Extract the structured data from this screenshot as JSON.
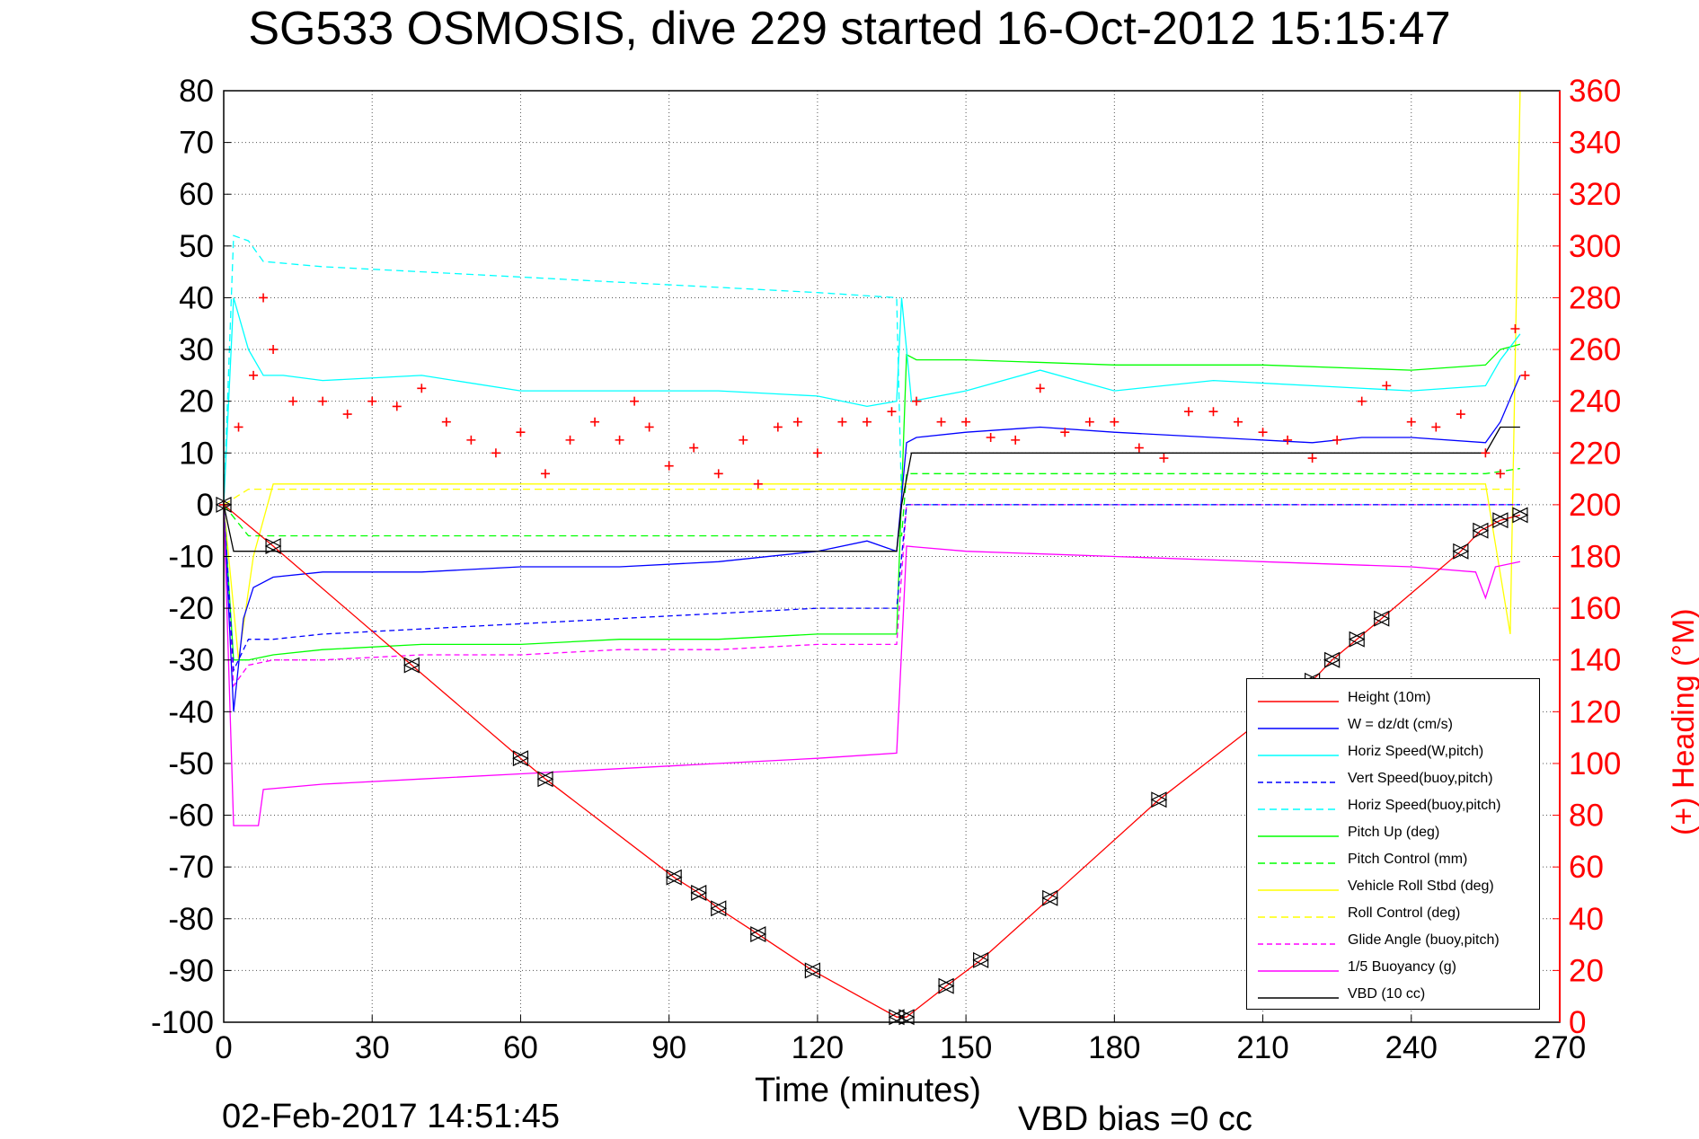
{
  "figure": {
    "title": "SG533 OSMOSIS, dive 229 started 16-Oct-2012 15:15:47",
    "timestamp": "02-Feb-2017 14:51:45",
    "vbd_bias": "VBD bias =0 cc"
  },
  "chart_data": {
    "type": "line",
    "title": "SG533 OSMOSIS, dive 229 started 16-Oct-2012 15:15:47",
    "xlabel": "Time (minutes)",
    "ylabel": "",
    "y2label": "(+) Heading (°M)",
    "xlim": [
      0,
      270
    ],
    "ylim": [
      -100,
      80
    ],
    "y2lim": [
      0,
      360
    ],
    "xticks": [
      0,
      30,
      60,
      90,
      120,
      150,
      180,
      210,
      240,
      270
    ],
    "yticks": [
      80,
      70,
      60,
      50,
      40,
      30,
      20,
      10,
      0,
      -10,
      -20,
      -30,
      -40,
      -50,
      -60,
      -70,
      -80,
      -90,
      -100
    ],
    "y2ticks": [
      360,
      340,
      320,
      300,
      280,
      260,
      240,
      220,
      200,
      180,
      160,
      140,
      120,
      100,
      80,
      60,
      40,
      20,
      0
    ],
    "grid": true,
    "legend_position": "bottom-right",
    "colors": {
      "height": "#ff0000",
      "w": "#0000ff",
      "horiz_w": "#00ffff",
      "vert_buoy": "#0000ff",
      "horiz_buoy": "#00ffff",
      "pitch": "#00ff00",
      "pitch_ctl": "#00ff00",
      "roll": "#ffff00",
      "roll_ctl": "#ffff00",
      "glide": "#ff00ff",
      "buoyancy": "#ff00ff",
      "vbd": "#000000",
      "heading": "#ff0000"
    },
    "series": [
      {
        "name": "Height (10m)",
        "key": "height",
        "dash": "solid",
        "x": [
          0,
          10,
          38,
          60,
          65,
          91,
          96,
          100,
          108,
          119,
          136,
          138,
          146,
          153,
          167,
          189,
          220,
          224,
          229,
          234,
          250,
          254,
          258,
          262
        ],
        "y": [
          0,
          -8,
          -31,
          -49,
          -53,
          -72,
          -75,
          -78,
          -83,
          -90,
          -99,
          -99,
          -93,
          -88,
          -76,
          -57,
          -34,
          -30,
          -26,
          -22,
          -9,
          -5,
          -3,
          -2
        ]
      },
      {
        "name": "W = dz/dt (cm/s)",
        "key": "w",
        "dash": "solid",
        "x": [
          0,
          2,
          4,
          6,
          10,
          20,
          40,
          60,
          80,
          100,
          120,
          130,
          136,
          138,
          140,
          150,
          165,
          180,
          200,
          220,
          230,
          240,
          255,
          258,
          262
        ],
        "y": [
          0,
          -40,
          -22,
          -16,
          -14,
          -13,
          -13,
          -12,
          -12,
          -11,
          -9,
          -7,
          -9,
          12,
          13,
          14,
          15,
          14,
          13,
          12,
          13,
          13,
          12,
          16,
          25
        ]
      },
      {
        "name": "Horiz Speed(W,pitch)",
        "key": "horiz_w",
        "dash": "solid",
        "x": [
          0,
          2,
          5,
          8,
          12,
          20,
          40,
          60,
          80,
          100,
          120,
          130,
          136,
          137,
          139,
          150,
          165,
          180,
          200,
          220,
          240,
          255,
          258,
          262
        ],
        "y": [
          0,
          40,
          30,
          25,
          25,
          24,
          25,
          22,
          22,
          22,
          21,
          19,
          20,
          40,
          20,
          22,
          26,
          22,
          24,
          23,
          22,
          23,
          28,
          33
        ]
      },
      {
        "name": "Vert Speed(buoy,pitch)",
        "key": "vert_buoy",
        "dash": "6,4",
        "x": [
          0,
          2,
          5,
          10,
          20,
          40,
          60,
          80,
          100,
          120,
          136,
          138,
          150,
          180,
          210,
          240,
          262
        ],
        "y": [
          0,
          -32,
          -26,
          -26,
          -25,
          -24,
          -23,
          -22,
          -21,
          -20,
          -20,
          0,
          0,
          0,
          0,
          0,
          0
        ]
      },
      {
        "name": "Horiz Speed(buoy,pitch)",
        "key": "horiz_buoy",
        "dash": "8,5",
        "x": [
          0,
          2,
          5,
          8,
          20,
          40,
          60,
          80,
          100,
          120,
          136,
          137,
          150,
          180,
          210,
          240,
          262
        ],
        "y": [
          0,
          52,
          51,
          47,
          46,
          45,
          44,
          43,
          42,
          41,
          40,
          0,
          0,
          0,
          0,
          0,
          0
        ]
      },
      {
        "name": "Pitch Up (deg)",
        "key": "pitch",
        "dash": "solid",
        "x": [
          0,
          2,
          5,
          10,
          20,
          40,
          60,
          80,
          100,
          120,
          136,
          138,
          140,
          150,
          180,
          210,
          240,
          255,
          258,
          262
        ],
        "y": [
          0,
          -30,
          -30,
          -29,
          -28,
          -27,
          -27,
          -26,
          -26,
          -25,
          -25,
          29,
          28,
          28,
          27,
          27,
          26,
          27,
          30,
          31
        ]
      },
      {
        "name": "Pitch Control (mm)",
        "key": "pitch_ctl",
        "dash": "8,5",
        "x": [
          0,
          5,
          20,
          40,
          60,
          80,
          100,
          120,
          137,
          138,
          150,
          180,
          210,
          240,
          255,
          262
        ],
        "y": [
          0,
          -6,
          -6,
          -6,
          -6,
          -6,
          -6,
          -6,
          -6,
          6,
          6,
          6,
          6,
          6,
          6,
          7
        ]
      },
      {
        "name": "Vehicle Roll Stbd (deg)",
        "key": "roll",
        "dash": "solid",
        "x": [
          0,
          3,
          6,
          10,
          20,
          40,
          60,
          80,
          100,
          120,
          136,
          138,
          150,
          180,
          210,
          240,
          255,
          260,
          262
        ],
        "y": [
          0,
          -30,
          -10,
          4,
          4,
          4,
          4,
          4,
          4,
          4,
          4,
          4,
          4,
          4,
          4,
          4,
          4,
          -25,
          80
        ]
      },
      {
        "name": "Roll Control (deg)",
        "key": "roll_ctl",
        "dash": "8,5",
        "x": [
          0,
          5,
          20,
          40,
          60,
          80,
          100,
          120,
          136,
          138,
          150,
          180,
          210,
          240,
          262
        ],
        "y": [
          0,
          3,
          3,
          3,
          3,
          3,
          3,
          3,
          3,
          3,
          3,
          3,
          3,
          3,
          3
        ]
      },
      {
        "name": "Glide Angle (buoy,pitch)",
        "key": "glide",
        "dash": "6,4",
        "x": [
          0,
          2,
          5,
          10,
          20,
          40,
          60,
          80,
          100,
          120,
          136,
          138,
          150,
          180,
          210,
          240,
          262
        ],
        "y": [
          0,
          -35,
          -31,
          -30,
          -30,
          -29,
          -29,
          -28,
          -28,
          -27,
          -27,
          0,
          0,
          0,
          0,
          0,
          0
        ]
      },
      {
        "name": "1/5 Buoyancy (g)",
        "key": "buoyancy",
        "dash": "solid",
        "x": [
          0,
          2,
          7,
          8,
          20,
          40,
          60,
          80,
          100,
          120,
          136,
          138,
          150,
          180,
          210,
          240,
          253,
          255,
          257,
          262
        ],
        "y": [
          0,
          -62,
          -62,
          -55,
          -54,
          -53,
          -52,
          -51,
          -50,
          -49,
          -48,
          -8,
          -9,
          -10,
          -11,
          -12,
          -13,
          -18,
          -12,
          -11
        ]
      },
      {
        "name": "VBD (10 cc)",
        "key": "vbd",
        "dash": "solid",
        "x": [
          0,
          2,
          20,
          60,
          100,
          136,
          137,
          139,
          150,
          180,
          210,
          240,
          255,
          258,
          262
        ],
        "y": [
          0,
          -9,
          -9,
          -9,
          -9,
          -9,
          0,
          10,
          10,
          10,
          10,
          10,
          10,
          15,
          15
        ]
      },
      {
        "name": "",
        "key": "heading",
        "axis": "right",
        "marker": "+",
        "x": [
          0,
          3,
          6,
          8,
          10,
          14,
          20,
          25,
          30,
          35,
          40,
          45,
          50,
          55,
          60,
          65,
          70,
          75,
          80,
          83,
          86,
          90,
          95,
          100,
          105,
          108,
          112,
          116,
          120,
          125,
          130,
          135,
          140,
          145,
          150,
          155,
          160,
          165,
          170,
          175,
          180,
          185,
          190,
          195,
          200,
          205,
          210,
          215,
          220,
          225,
          230,
          235,
          240,
          245,
          250,
          255,
          258,
          261,
          263
        ],
        "y": [
          200,
          230,
          250,
          280,
          260,
          240,
          240,
          235,
          240,
          238,
          245,
          232,
          225,
          220,
          228,
          212,
          225,
          232,
          225,
          240,
          230,
          215,
          222,
          212,
          225,
          208,
          230,
          232,
          220,
          232,
          232,
          236,
          240,
          232,
          232,
          226,
          225,
          245,
          228,
          232,
          232,
          222,
          218,
          236,
          236,
          232,
          228,
          225,
          218,
          225,
          240,
          246,
          232,
          230,
          235,
          220,
          212,
          268,
          250
        ]
      }
    ]
  }
}
